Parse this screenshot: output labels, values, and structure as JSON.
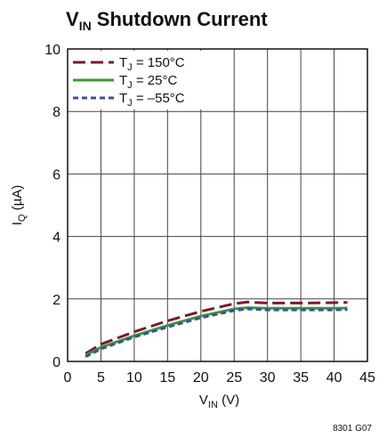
{
  "chart_data": {
    "type": "line",
    "title": {
      "main": "V",
      "sub": "IN",
      "rest": " Shutdown Current"
    },
    "xlabel": {
      "main": "V",
      "sub": "IN",
      "rest": " (V)"
    },
    "ylabel": {
      "main": "I",
      "sub": "Q",
      "rest": " (µA)"
    },
    "xlim": [
      0,
      45
    ],
    "ylim": [
      0,
      10
    ],
    "xticks": [
      0,
      5,
      10,
      15,
      20,
      25,
      30,
      35,
      40,
      45
    ],
    "yticks": [
      0,
      2,
      4,
      6,
      8,
      10
    ],
    "grid": true,
    "legend_position": "top-left",
    "series": [
      {
        "name": {
          "main": "T",
          "sub": "J",
          "rest": " = 150°C"
        },
        "color": "#7a1a2e",
        "dash": "long-dash",
        "x": [
          2.7,
          5,
          10,
          15,
          20,
          25,
          27,
          30,
          35,
          40,
          42
        ],
        "y": [
          0.25,
          0.55,
          0.95,
          1.3,
          1.6,
          1.85,
          1.9,
          1.87,
          1.87,
          1.88,
          1.89
        ]
      },
      {
        "name": {
          "main": "T",
          "sub": "J",
          "rest": " = 25°C"
        },
        "color": "#3a9a3a",
        "dash": "solid",
        "x": [
          2.7,
          5,
          10,
          15,
          20,
          25,
          27,
          30,
          35,
          40,
          42
        ],
        "y": [
          0.2,
          0.45,
          0.82,
          1.15,
          1.45,
          1.68,
          1.72,
          1.7,
          1.7,
          1.7,
          1.71
        ]
      },
      {
        "name": {
          "main": "T",
          "sub": "J",
          "rest": " = –55°C"
        },
        "color": "#3a4fa0",
        "dash": "short-dash",
        "x": [
          2.7,
          5,
          10,
          15,
          20,
          25,
          27,
          30,
          35,
          40,
          42
        ],
        "y": [
          0.15,
          0.4,
          0.78,
          1.1,
          1.4,
          1.63,
          1.68,
          1.65,
          1.65,
          1.65,
          1.66
        ]
      }
    ],
    "footnote": "8301 G07"
  }
}
